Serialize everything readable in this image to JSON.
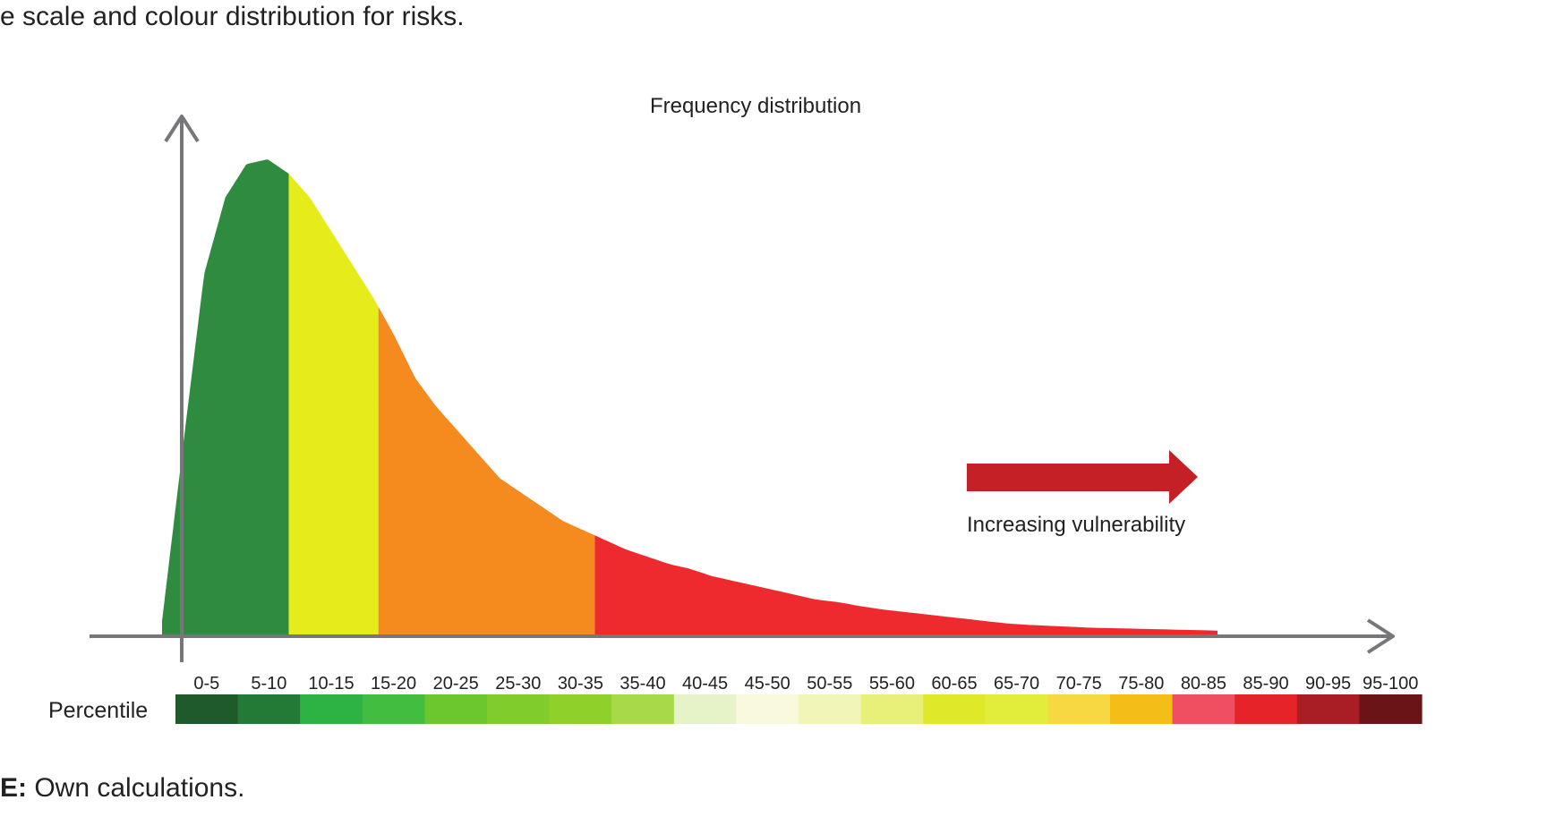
{
  "caption_top": "e scale and colour distribution for risks.",
  "source_prefix": "E:",
  "source_text": " Own calculations.",
  "chart_data": {
    "type": "area",
    "title": "Frequency distribution",
    "annotation": "Increasing vulnerability",
    "row_label": "Percentile",
    "x": [
      0,
      2,
      4,
      6,
      8,
      10,
      12,
      14,
      16,
      18,
      20,
      22,
      24,
      26,
      28,
      30,
      32,
      34,
      36,
      38,
      40,
      42,
      44,
      46,
      48,
      50,
      52,
      54,
      56,
      58,
      60,
      62,
      64,
      66,
      68,
      70,
      72,
      74,
      76,
      78,
      80,
      82,
      84,
      86,
      88,
      90,
      92,
      94,
      96,
      98,
      100
    ],
    "values": [
      3,
      40,
      76,
      92,
      99,
      100,
      97,
      92,
      85,
      78,
      71,
      63,
      54,
      48,
      43,
      38,
      33,
      30,
      27,
      24,
      22,
      20,
      18,
      16.5,
      15,
      14,
      12.5,
      11.5,
      10.5,
      9.5,
      8.5,
      7.5,
      7,
      6.2,
      5.5,
      5,
      4.5,
      4,
      3.5,
      3,
      2.5,
      2.2,
      2,
      1.8,
      1.6,
      1.5,
      1.4,
      1.3,
      1.2,
      1.1,
      1
    ],
    "area_bands": [
      {
        "from": 0,
        "to": 12,
        "color": "#2e8b3f"
      },
      {
        "from": 12,
        "to": 20.5,
        "color": "#e6ec1a"
      },
      {
        "from": 20.5,
        "to": 41,
        "color": "#f58a1f"
      },
      {
        "from": 41,
        "to": 100,
        "color": "#ee2a2e"
      }
    ],
    "arrow_color": "#c42026",
    "percentile_bins": [
      {
        "label": "0-5",
        "color": "#1f5a2a"
      },
      {
        "label": "5-10",
        "color": "#237a36"
      },
      {
        "label": "10-15",
        "color": "#2db344"
      },
      {
        "label": "15-20",
        "color": "#42bd3f"
      },
      {
        "label": "20-25",
        "color": "#6cc72f"
      },
      {
        "label": "25-30",
        "color": "#80cc2a"
      },
      {
        "label": "30-35",
        "color": "#8fd02b"
      },
      {
        "label": "35-40",
        "color": "#a6da49"
      },
      {
        "label": "40-45",
        "color": "#e6f2c8"
      },
      {
        "label": "45-50",
        "color": "#f9f9de"
      },
      {
        "label": "50-55",
        "color": "#f1f6b8"
      },
      {
        "label": "55-60",
        "color": "#e8f07a"
      },
      {
        "label": "60-65",
        "color": "#dfe92a"
      },
      {
        "label": "65-70",
        "color": "#e2ec3a"
      },
      {
        "label": "70-75",
        "color": "#f8d840"
      },
      {
        "label": "75-80",
        "color": "#f5bd18"
      },
      {
        "label": "80-85",
        "color": "#f04e61"
      },
      {
        "label": "85-90",
        "color": "#e52329"
      },
      {
        "label": "90-95",
        "color": "#a91d24"
      },
      {
        "label": "95-100",
        "color": "#6b1418"
      }
    ],
    "axis_color": "#77777a"
  }
}
